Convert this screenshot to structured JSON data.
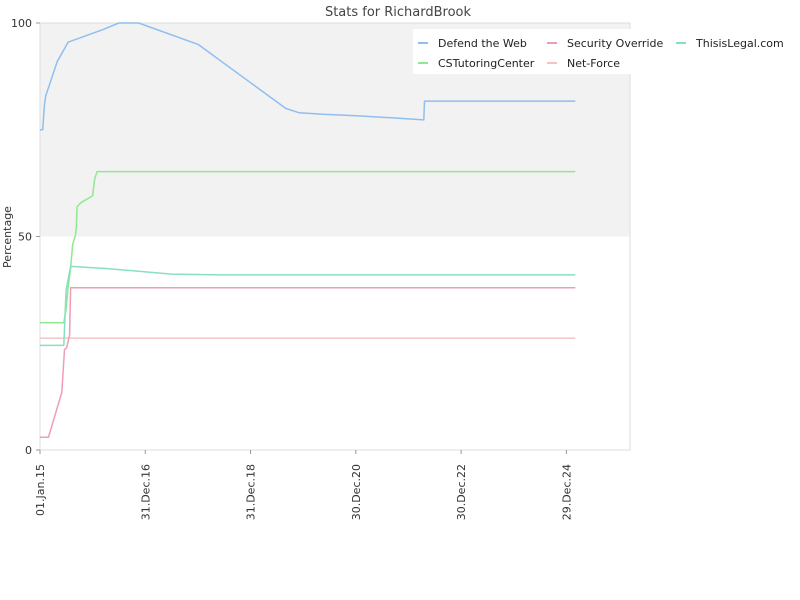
{
  "chart_data": {
    "type": "line",
    "title": "Stats for RichardBrook",
    "xlabel": "",
    "ylabel": "Percentage",
    "ylim": [
      0,
      100
    ],
    "xlim": [
      "2015-01-01",
      "2026-03-15"
    ],
    "x_tick_labels": [
      "01.Jan.15",
      "31.Dec.16",
      "31.Dec.18",
      "30.Dec.20",
      "30.Dec.22",
      "29.Dec.24"
    ],
    "x_tick_dates": [
      "2015-01-01",
      "2016-12-31",
      "2018-12-31",
      "2020-12-30",
      "2022-12-30",
      "2024-12-29"
    ],
    "y_ticks": [
      0,
      50,
      100
    ],
    "grid": false,
    "band": {
      "from": 50,
      "to": 100,
      "color": "#f2f2f2"
    },
    "legend_position": "top-right",
    "series": [
      {
        "name": "Defend the Web",
        "color": "#8fbff0",
        "points": [
          [
            "2015-01-01",
            75
          ],
          [
            "2015-01-20",
            75
          ],
          [
            "2015-02-01",
            81
          ],
          [
            "2015-02-10",
            83
          ],
          [
            "2015-05-01",
            91
          ],
          [
            "2015-07-15",
            95.5
          ],
          [
            "2016-03-15",
            98.5
          ],
          [
            "2016-07-01",
            100
          ],
          [
            "2016-11-15",
            100
          ],
          [
            "2018-01-01",
            95
          ],
          [
            "2019-01-01",
            86
          ],
          [
            "2019-09-01",
            80
          ],
          [
            "2019-12-01",
            79
          ],
          [
            "2020-06-01",
            78.6
          ],
          [
            "2021-01-01",
            78.3
          ],
          [
            "2021-09-01",
            77.8
          ],
          [
            "2022-04-15",
            77.3
          ],
          [
            "2022-04-20",
            81.7
          ],
          [
            "2025-03-01",
            81.7
          ]
        ]
      },
      {
        "name": "CSTutoringCenter",
        "color": "#90e890",
        "points": [
          [
            "2015-01-01",
            29.8
          ],
          [
            "2015-06-15",
            29.8
          ],
          [
            "2015-07-01",
            33
          ],
          [
            "2015-07-15",
            38
          ],
          [
            "2015-08-01",
            42.5
          ],
          [
            "2015-08-15",
            48
          ],
          [
            "2015-09-05",
            50.5
          ],
          [
            "2015-09-10",
            52
          ],
          [
            "2015-09-15",
            57
          ],
          [
            "2015-10-15",
            58
          ],
          [
            "2016-01-01",
            59.5
          ],
          [
            "2016-01-15",
            63.5
          ],
          [
            "2016-02-01",
            65.2
          ],
          [
            "2025-03-01",
            65.2
          ]
        ]
      },
      {
        "name": "Net-Force",
        "color": "#f4c4c4",
        "points": [
          [
            "2015-01-01",
            26.2
          ],
          [
            "2025-03-01",
            26.2
          ]
        ]
      },
      {
        "name": "ThisisLegal.com",
        "color": "#88e0c4",
        "points": [
          [
            "2015-01-01",
            24.5
          ],
          [
            "2015-06-15",
            24.5
          ],
          [
            "2015-07-01",
            37.5
          ],
          [
            "2015-08-01",
            43
          ],
          [
            "2016-04-01",
            42.5
          ],
          [
            "2017-07-01",
            41.2
          ],
          [
            "2018-06-01",
            41
          ],
          [
            "2025-03-01",
            41
          ]
        ]
      },
      {
        "name": "Security Override",
        "color": "#f09cb8",
        "points": [
          [
            "2015-01-01",
            3
          ],
          [
            "2015-03-01",
            3
          ],
          [
            "2015-06-01",
            13.5
          ],
          [
            "2015-06-20",
            23.5
          ],
          [
            "2015-07-05",
            24
          ],
          [
            "2015-07-25",
            27
          ],
          [
            "2015-08-01",
            38
          ],
          [
            "2025-03-01",
            38
          ]
        ]
      }
    ],
    "legend_order": [
      "Defend the Web",
      "Security Override",
      "ThisisLegal.com",
      "CSTutoringCenter",
      "Net-Force"
    ]
  }
}
